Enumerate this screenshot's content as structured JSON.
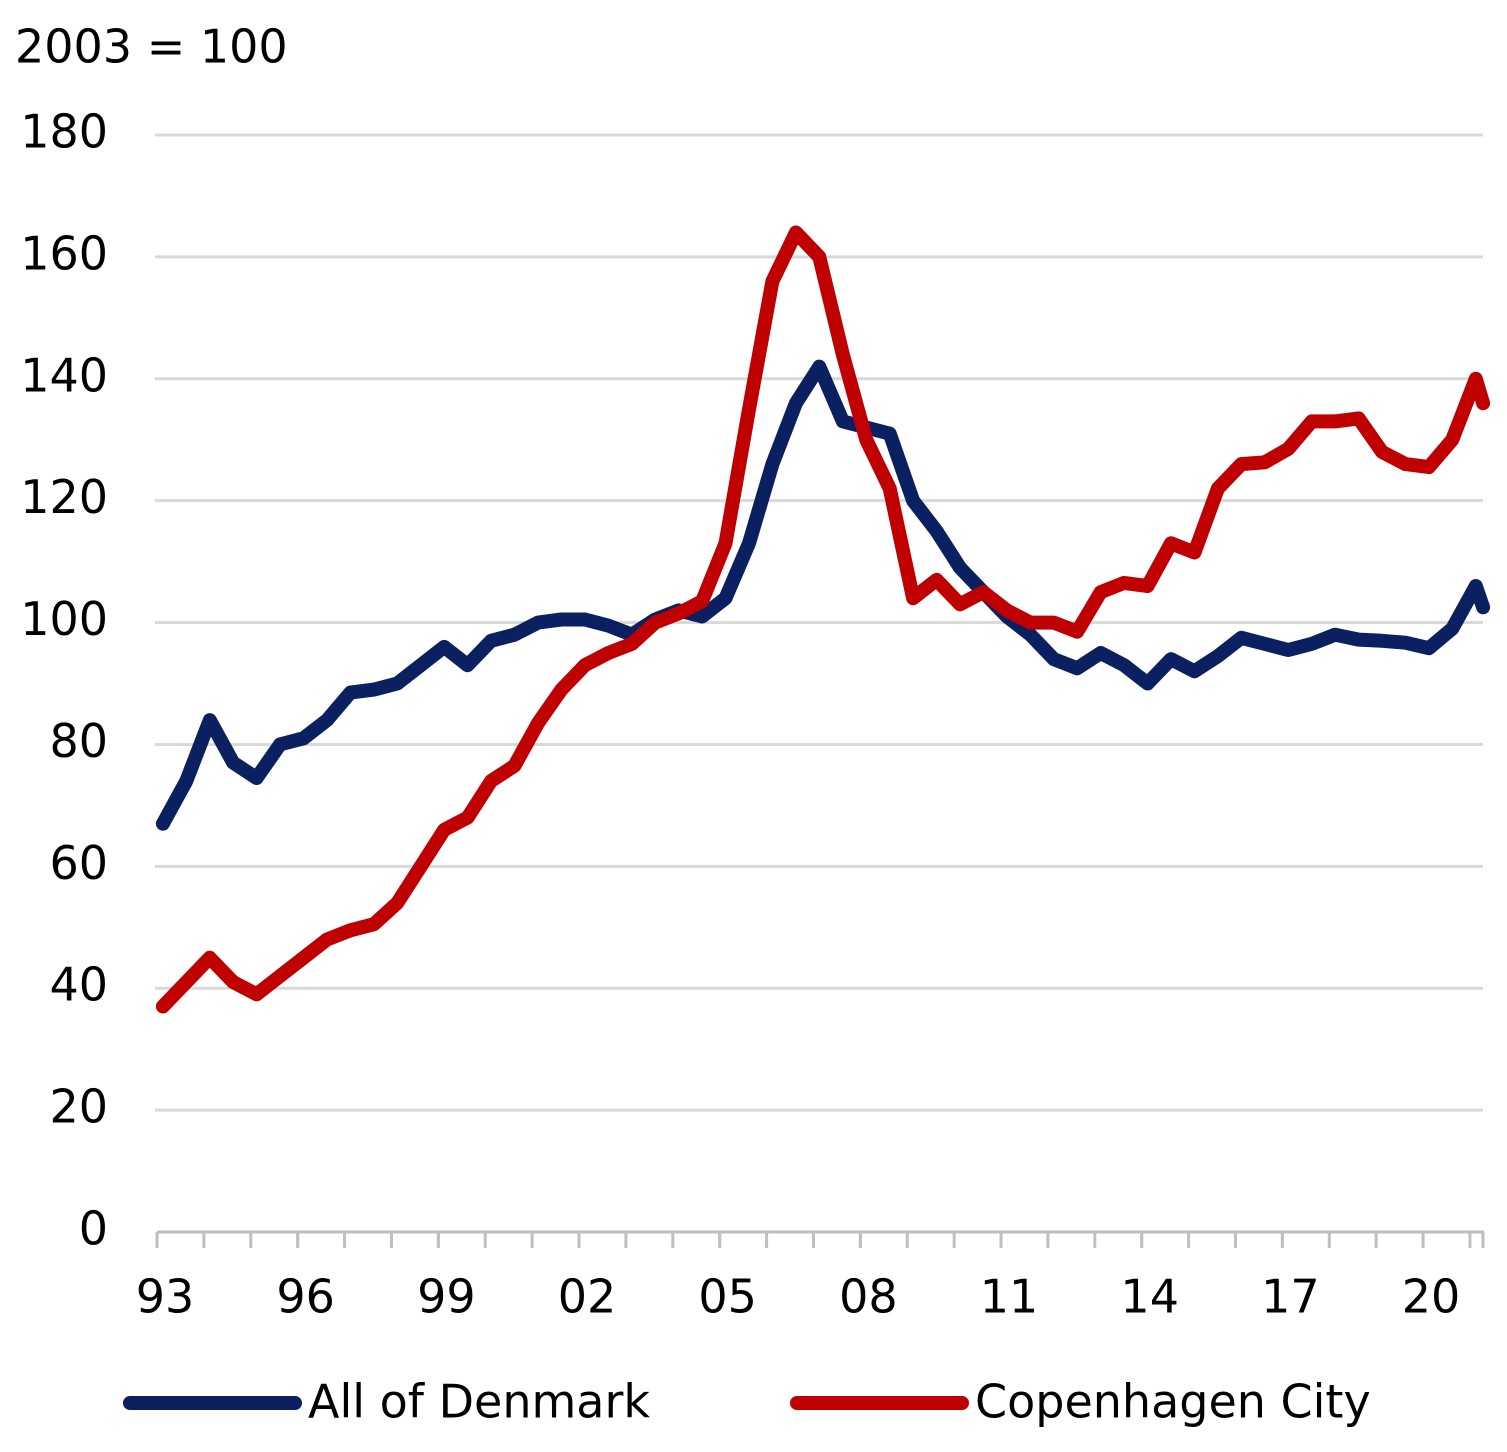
{
  "chart_data": {
    "type": "line",
    "title": "2003 = 100",
    "x": [
      1993.125,
      1993.625,
      1994.125,
      1994.625,
      1995.125,
      1995.625,
      1996.125,
      1996.625,
      1997.125,
      1997.625,
      1998.125,
      1998.625,
      1999.125,
      1999.625,
      2000.125,
      2000.625,
      2001.125,
      2001.625,
      2002.125,
      2002.625,
      2003.125,
      2003.625,
      2004.125,
      2004.625,
      2005.125,
      2005.625,
      2006.125,
      2006.625,
      2007.125,
      2007.625,
      2008.125,
      2008.625,
      2009.125,
      2009.625,
      2010.125,
      2010.625,
      2011.125,
      2011.625,
      2012.125,
      2012.625,
      2013.125,
      2013.625,
      2014.125,
      2014.625,
      2015.125,
      2015.625,
      2016.125,
      2016.625,
      2017.125,
      2017.625,
      2018.125,
      2018.625,
      2019.125,
      2019.625,
      2020.125,
      2020.625,
      2021.125,
      2021.28
    ],
    "series": [
      {
        "name": "All of Denmark",
        "color": "#0a2060",
        "values": [
          67,
          74,
          84,
          77,
          74.5,
          80,
          81,
          84,
          88.5,
          89,
          90,
          93,
          96,
          93,
          97,
          98,
          100,
          100.5,
          100.5,
          99.5,
          98,
          100.5,
          102,
          101,
          104,
          113,
          126,
          136,
          142,
          133,
          132,
          131,
          120,
          115,
          109,
          105,
          101,
          98,
          94,
          92.5,
          95,
          93,
          90,
          94,
          92,
          94.5,
          97.5,
          96.5,
          95.5,
          96.5,
          98,
          97.2,
          97,
          96.7,
          95.8,
          99,
          106,
          102.5
        ]
      },
      {
        "name": "Copenhagen City",
        "color": "#c00000",
        "values": [
          37,
          41,
          45,
          41,
          39,
          42,
          45,
          48,
          49.5,
          50.5,
          54,
          60,
          66,
          68,
          74,
          76.5,
          83.5,
          89,
          93,
          95,
          96.5,
          100,
          101.5,
          103.5,
          113,
          135,
          156,
          164,
          160,
          144,
          130,
          122,
          104,
          107,
          103,
          105,
          102,
          100,
          100,
          98.5,
          105,
          106.5,
          106,
          113,
          111.5,
          122,
          126,
          126.3,
          128.5,
          133,
          133,
          133.5,
          128,
          126,
          125.5,
          130,
          140,
          136
        ]
      }
    ],
    "xlim": [
      1993,
      2021.3
    ],
    "xticks": [
      {
        "value": 1993,
        "label": "93"
      },
      {
        "value": 1996,
        "label": "96"
      },
      {
        "value": 1999,
        "label": "99"
      },
      {
        "value": 2002,
        "label": "02"
      },
      {
        "value": 2005,
        "label": "05"
      },
      {
        "value": 2008,
        "label": "08"
      },
      {
        "value": 2011,
        "label": "11"
      },
      {
        "value": 2014,
        "label": "14"
      },
      {
        "value": 2017,
        "label": "17"
      },
      {
        "value": 2020,
        "label": "20"
      }
    ],
    "ylim": [
      0,
      180
    ],
    "yticks": [
      0,
      20,
      40,
      60,
      80,
      100,
      120,
      140,
      160,
      180
    ],
    "grid": true,
    "legend": "bottom"
  }
}
